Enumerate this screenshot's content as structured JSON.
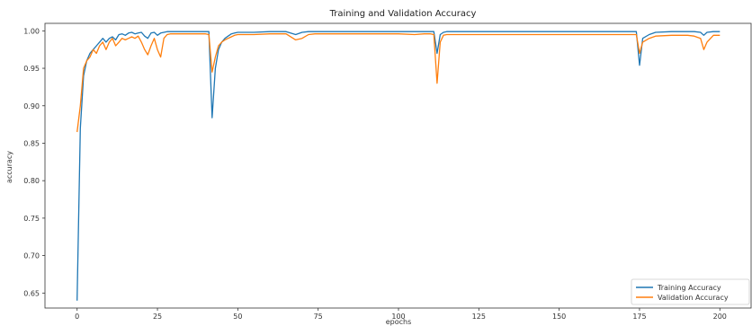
{
  "chart_data": {
    "type": "line",
    "title": "Training and Validation Accuracy",
    "xlabel": "epochs",
    "ylabel": "accuracy",
    "xlim": [
      -10,
      210
    ],
    "ylim": [
      0.63,
      1.01
    ],
    "xticks": [
      0,
      25,
      50,
      75,
      100,
      125,
      150,
      175,
      200
    ],
    "yticks": [
      0.65,
      0.7,
      0.75,
      0.8,
      0.85,
      0.9,
      0.95,
      1.0
    ],
    "ytick_labels": [
      "0.65",
      "0.70",
      "0.75",
      "0.80",
      "0.85",
      "0.90",
      "0.95",
      "1.00"
    ],
    "grid": false,
    "legend_position": "bottom-right",
    "colors": {
      "training": "#1f77b4",
      "validation": "#ff7f0e"
    },
    "series": [
      {
        "name": "Training Accuracy",
        "x": [
          0,
          1,
          2,
          3,
          4,
          5,
          6,
          7,
          8,
          9,
          10,
          11,
          12,
          13,
          14,
          15,
          16,
          17,
          18,
          19,
          20,
          21,
          22,
          23,
          24,
          25,
          26,
          27,
          28,
          29,
          30,
          32,
          35,
          38,
          40,
          41,
          42,
          43,
          44,
          45,
          46,
          47,
          48,
          49,
          50,
          55,
          60,
          65,
          68,
          70,
          72,
          74,
          76,
          80,
          90,
          100,
          105,
          108,
          110,
          111,
          112,
          113,
          114,
          115,
          120,
          130,
          140,
          150,
          160,
          170,
          172,
          174,
          175,
          176,
          178,
          180,
          185,
          190,
          192,
          194,
          195,
          196,
          198,
          200
        ],
        "y": [
          0.64,
          0.87,
          0.94,
          0.96,
          0.97,
          0.975,
          0.98,
          0.985,
          0.99,
          0.985,
          0.99,
          0.992,
          0.988,
          0.995,
          0.996,
          0.994,
          0.997,
          0.998,
          0.996,
          0.997,
          0.998,
          0.993,
          0.99,
          0.997,
          0.998,
          0.994,
          0.997,
          0.998,
          0.999,
          0.999,
          0.999,
          0.999,
          0.999,
          0.999,
          0.999,
          0.999,
          0.884,
          0.95,
          0.975,
          0.985,
          0.99,
          0.993,
          0.996,
          0.997,
          0.998,
          0.998,
          0.999,
          0.999,
          0.995,
          0.998,
          0.999,
          0.999,
          0.999,
          0.999,
          0.999,
          0.999,
          0.999,
          0.999,
          0.999,
          0.999,
          0.97,
          0.995,
          0.998,
          0.999,
          0.999,
          0.999,
          0.999,
          0.999,
          0.999,
          0.999,
          0.999,
          0.999,
          0.954,
          0.99,
          0.995,
          0.998,
          0.999,
          0.999,
          0.999,
          0.998,
          0.994,
          0.998,
          0.999,
          0.999
        ]
      },
      {
        "name": "Validation Accuracy",
        "x": [
          0,
          1,
          2,
          3,
          4,
          5,
          6,
          7,
          8,
          9,
          10,
          11,
          12,
          13,
          14,
          15,
          16,
          17,
          18,
          19,
          20,
          21,
          22,
          23,
          24,
          25,
          26,
          27,
          28,
          29,
          30,
          32,
          35,
          38,
          40,
          41,
          42,
          43,
          44,
          45,
          46,
          47,
          48,
          49,
          50,
          55,
          60,
          65,
          68,
          70,
          72,
          74,
          76,
          80,
          90,
          100,
          105,
          108,
          110,
          111,
          112,
          113,
          114,
          115,
          120,
          130,
          140,
          150,
          160,
          170,
          172,
          174,
          175,
          176,
          178,
          180,
          185,
          190,
          192,
          194,
          195,
          196,
          198,
          200
        ],
        "y": [
          0.865,
          0.9,
          0.95,
          0.96,
          0.965,
          0.975,
          0.97,
          0.98,
          0.985,
          0.975,
          0.985,
          0.99,
          0.98,
          0.985,
          0.99,
          0.988,
          0.99,
          0.992,
          0.99,
          0.993,
          0.985,
          0.975,
          0.968,
          0.98,
          0.99,
          0.975,
          0.965,
          0.99,
          0.995,
          0.996,
          0.996,
          0.996,
          0.996,
          0.996,
          0.996,
          0.995,
          0.945,
          0.965,
          0.98,
          0.985,
          0.988,
          0.99,
          0.992,
          0.994,
          0.995,
          0.995,
          0.996,
          0.996,
          0.988,
          0.99,
          0.995,
          0.996,
          0.996,
          0.996,
          0.996,
          0.996,
          0.995,
          0.996,
          0.996,
          0.995,
          0.93,
          0.985,
          0.994,
          0.995,
          0.995,
          0.995,
          0.995,
          0.995,
          0.995,
          0.995,
          0.995,
          0.995,
          0.97,
          0.985,
          0.99,
          0.993,
          0.994,
          0.994,
          0.993,
          0.99,
          0.975,
          0.985,
          0.994,
          0.994
        ]
      }
    ]
  }
}
